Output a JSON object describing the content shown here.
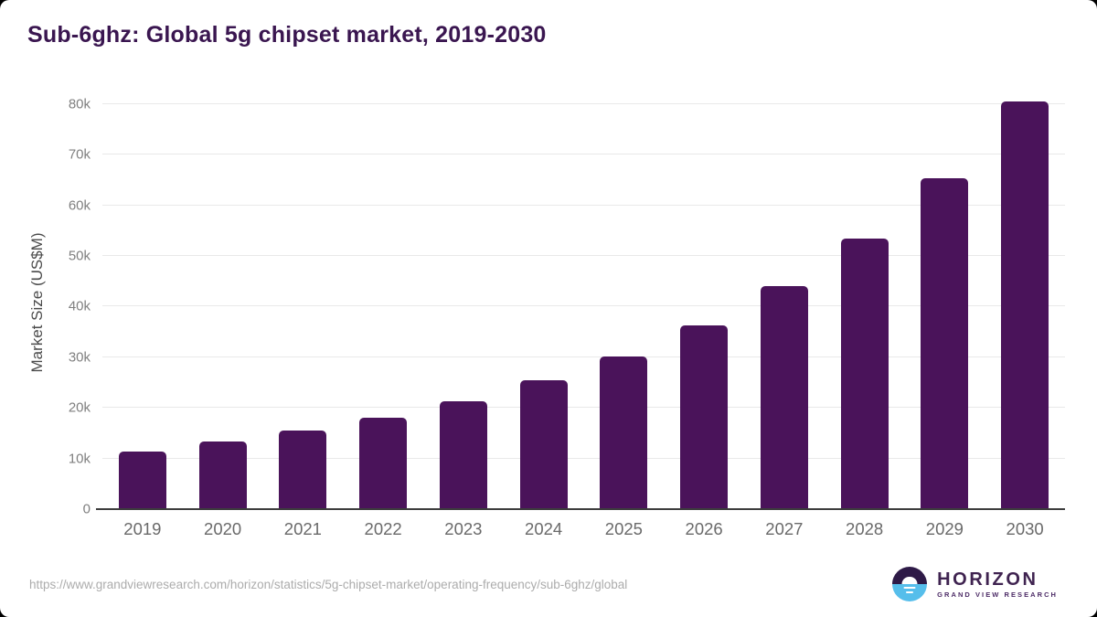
{
  "title": "Sub-6ghz: Global 5g chipset market, 2019-2030",
  "footer": {
    "source_url": "https://www.grandviewresearch.com/horizon/statistics/5g-chipset-market/operating-frequency/sub-6ghz/global",
    "logo": {
      "name": "HORIZON",
      "subtitle": "GRAND VIEW RESEARCH"
    }
  },
  "colors": {
    "bar": "#4A135A",
    "title": "#3A1650",
    "gridline": "#e9e9e9",
    "axis_line": "#3d3d3d",
    "tick_label": "#7f7f7f",
    "logo_purple": "#2E1A47",
    "logo_blue": "#56BEEB"
  },
  "chart_data": {
    "type": "bar",
    "title": "Sub-6ghz: Global 5g chipset market, 2019-2030",
    "categories": [
      "2019",
      "2020",
      "2021",
      "2022",
      "2023",
      "2024",
      "2025",
      "2026",
      "2027",
      "2028",
      "2029",
      "2030"
    ],
    "values": [
      11400,
      13300,
      15500,
      18100,
      21300,
      25400,
      30200,
      36200,
      44000,
      53500,
      65400,
      80600
    ],
    "xlabel": "",
    "ylabel": "Market Size (US$M)",
    "ylim": [
      0,
      80000
    ],
    "yticks": [
      {
        "value": 0,
        "label": "0"
      },
      {
        "value": 10000,
        "label": "10k"
      },
      {
        "value": 20000,
        "label": "20k"
      },
      {
        "value": 30000,
        "label": "30k"
      },
      {
        "value": 40000,
        "label": "40k"
      },
      {
        "value": 50000,
        "label": "50k"
      },
      {
        "value": 60000,
        "label": "60k"
      },
      {
        "value": 70000,
        "label": "70k"
      },
      {
        "value": 80000,
        "label": "80k"
      }
    ],
    "grid": true,
    "legend": false,
    "unit": "US$M"
  }
}
